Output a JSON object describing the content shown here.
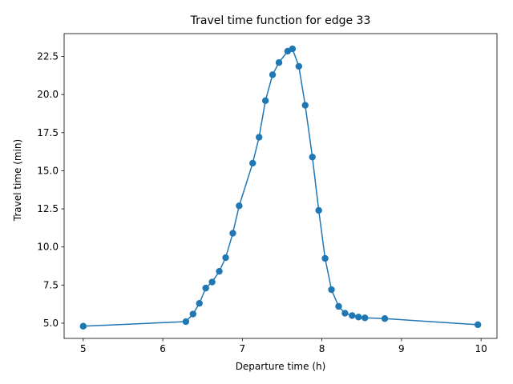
{
  "chart_data": {
    "type": "line",
    "title": "Travel time function for edge 33",
    "xlabel": "Departure time (h)",
    "ylabel": "Travel time (min)",
    "xlim": [
      4.76,
      10.2
    ],
    "ylim": [
      4.0,
      24.0
    ],
    "xticks": [
      5,
      6,
      7,
      8,
      9,
      10
    ],
    "xtick_labels": [
      "5",
      "6",
      "7",
      "8",
      "9",
      "10"
    ],
    "yticks": [
      5.0,
      7.5,
      10.0,
      12.5,
      15.0,
      17.5,
      20.0,
      22.5
    ],
    "ytick_labels": [
      "5.0",
      "7.5",
      "10.0",
      "12.5",
      "15.0",
      "17.5",
      "20.0",
      "22.5"
    ],
    "grid": false,
    "legend": "none",
    "series": [
      {
        "color": "#1f77b4",
        "marker": "circle",
        "x": [
          5.0,
          6.29,
          6.38,
          6.46,
          6.54,
          6.62,
          6.71,
          6.79,
          6.88,
          6.96,
          7.13,
          7.21,
          7.29,
          7.38,
          7.46,
          7.57,
          7.63,
          7.71,
          7.79,
          7.88,
          7.96,
          8.04,
          8.12,
          8.21,
          8.29,
          8.38,
          8.46,
          8.54,
          8.79,
          9.96
        ],
        "y": [
          4.8,
          5.1,
          5.6,
          6.3,
          7.3,
          7.7,
          8.4,
          9.3,
          10.9,
          12.7,
          15.5,
          17.2,
          19.6,
          21.3,
          22.1,
          22.85,
          23.0,
          21.85,
          19.3,
          15.9,
          12.4,
          9.25,
          7.2,
          6.1,
          5.65,
          5.5,
          5.4,
          5.35,
          5.3,
          4.9
        ]
      }
    ]
  }
}
